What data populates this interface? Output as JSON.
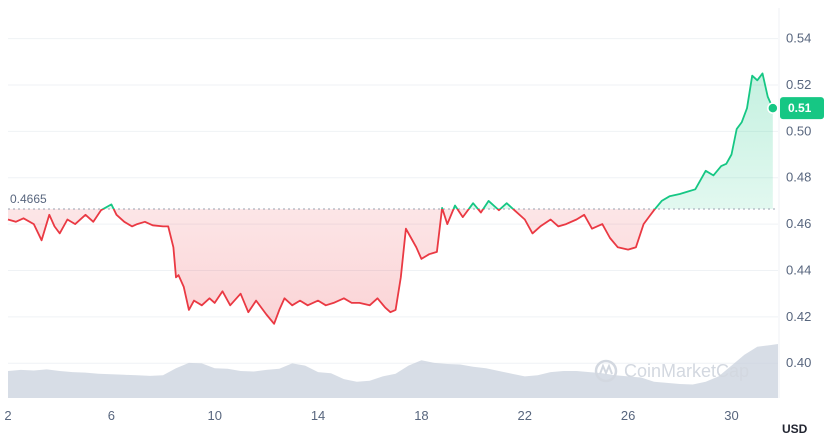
{
  "chart_data": {
    "type": "line",
    "reference_line": {
      "value": 0.4665,
      "label": "0.4665"
    },
    "current_price": {
      "value": 0.51,
      "label": "0.51"
    },
    "y_unit": "USD",
    "ylim": [
      0.385,
      0.545
    ],
    "y_ticks": [
      {
        "value": 0.54,
        "label": "0.54"
      },
      {
        "value": 0.52,
        "label": "0.52"
      },
      {
        "value": 0.5,
        "label": "0.50"
      },
      {
        "value": 0.48,
        "label": "0.48"
      },
      {
        "value": 0.46,
        "label": "0.46"
      },
      {
        "value": 0.44,
        "label": "0.44"
      },
      {
        "value": 0.42,
        "label": "0.42"
      },
      {
        "value": 0.4,
        "label": "0.40"
      }
    ],
    "xlim": [
      2,
      31.8
    ],
    "x_ticks": [
      {
        "value": 2,
        "label": "2"
      },
      {
        "value": 6,
        "label": "6"
      },
      {
        "value": 10,
        "label": "10"
      },
      {
        "value": 14,
        "label": "14"
      },
      {
        "value": 18,
        "label": "18"
      },
      {
        "value": 22,
        "label": "22"
      },
      {
        "value": 26,
        "label": "26"
      },
      {
        "value": 30,
        "label": "30"
      }
    ],
    "price": {
      "x": [
        2.0,
        2.3,
        2.6,
        3.0,
        3.3,
        3.6,
        3.8,
        4.0,
        4.3,
        4.6,
        5.0,
        5.3,
        5.6,
        6.0,
        6.2,
        6.5,
        6.8,
        7.0,
        7.3,
        7.6,
        8.0,
        8.2,
        8.4,
        8.5,
        8.6,
        8.8,
        9.0,
        9.2,
        9.5,
        9.8,
        10.0,
        10.3,
        10.6,
        11.0,
        11.3,
        11.6,
        12.0,
        12.3,
        12.5,
        12.7,
        13.0,
        13.3,
        13.6,
        14.0,
        14.3,
        14.6,
        15.0,
        15.3,
        15.6,
        16.0,
        16.3,
        16.6,
        16.8,
        17.0,
        17.2,
        17.4,
        17.6,
        17.8,
        18.0,
        18.3,
        18.6,
        18.8,
        19.0,
        19.3,
        19.6,
        20.0,
        20.3,
        20.6,
        21.0,
        21.3,
        21.6,
        22.0,
        22.3,
        22.6,
        23.0,
        23.3,
        23.6,
        24.0,
        24.3,
        24.6,
        25.0,
        25.3,
        25.6,
        26.0,
        26.3,
        26.6,
        26.8,
        27.0,
        27.3,
        27.6,
        28.0,
        28.3,
        28.6,
        29.0,
        29.3,
        29.6,
        29.8,
        30.0,
        30.2,
        30.4,
        30.6,
        30.8,
        31.0,
        31.2,
        31.4,
        31.6
      ],
      "y": [
        0.462,
        0.461,
        0.4625,
        0.46,
        0.453,
        0.464,
        0.459,
        0.456,
        0.462,
        0.46,
        0.464,
        0.461,
        0.466,
        0.4685,
        0.464,
        0.461,
        0.459,
        0.46,
        0.461,
        0.4595,
        0.459,
        0.459,
        0.45,
        0.437,
        0.438,
        0.433,
        0.423,
        0.427,
        0.425,
        0.428,
        0.426,
        0.431,
        0.425,
        0.43,
        0.422,
        0.427,
        0.421,
        0.417,
        0.423,
        0.428,
        0.425,
        0.427,
        0.425,
        0.427,
        0.425,
        0.426,
        0.428,
        0.426,
        0.426,
        0.425,
        0.428,
        0.424,
        0.422,
        0.423,
        0.437,
        0.458,
        0.454,
        0.45,
        0.445,
        0.447,
        0.448,
        0.467,
        0.46,
        0.468,
        0.463,
        0.469,
        0.465,
        0.47,
        0.466,
        0.469,
        0.466,
        0.462,
        0.456,
        0.459,
        0.462,
        0.459,
        0.46,
        0.462,
        0.464,
        0.458,
        0.46,
        0.454,
        0.45,
        0.449,
        0.45,
        0.46,
        0.463,
        0.466,
        0.47,
        0.472,
        0.473,
        0.474,
        0.475,
        0.483,
        0.481,
        0.485,
        0.486,
        0.49,
        0.501,
        0.504,
        0.51,
        0.524,
        0.522,
        0.525,
        0.515,
        0.51
      ]
    },
    "volume": {
      "x": [
        2.0,
        2.5,
        3.0,
        3.5,
        4.0,
        4.5,
        5.0,
        5.5,
        6.0,
        6.5,
        7.0,
        7.5,
        8.0,
        8.5,
        9.0,
        9.5,
        10.0,
        10.5,
        11.0,
        11.5,
        12.0,
        12.5,
        13.0,
        13.5,
        14.0,
        14.5,
        15.0,
        15.5,
        16.0,
        16.5,
        17.0,
        17.5,
        18.0,
        18.5,
        19.0,
        19.5,
        20.0,
        20.5,
        21.0,
        21.5,
        22.0,
        22.5,
        23.0,
        23.5,
        24.0,
        24.5,
        25.0,
        25.5,
        26.0,
        26.5,
        27.0,
        27.5,
        28.0,
        28.5,
        29.0,
        29.5,
        30.0,
        30.5,
        31.0,
        31.5,
        31.8
      ],
      "value": [
        50,
        52,
        51,
        53,
        50,
        48,
        47,
        45,
        44,
        43,
        42,
        41,
        42,
        55,
        65,
        64,
        55,
        54,
        50,
        49,
        52,
        54,
        64,
        60,
        48,
        46,
        35,
        30,
        32,
        40,
        45,
        60,
        70,
        65,
        63,
        62,
        58,
        55,
        50,
        45,
        40,
        42,
        48,
        50,
        50,
        48,
        46,
        42,
        40,
        38,
        30,
        28,
        26,
        25,
        30,
        40,
        60,
        80,
        95,
        98,
        100
      ]
    }
  }
}
